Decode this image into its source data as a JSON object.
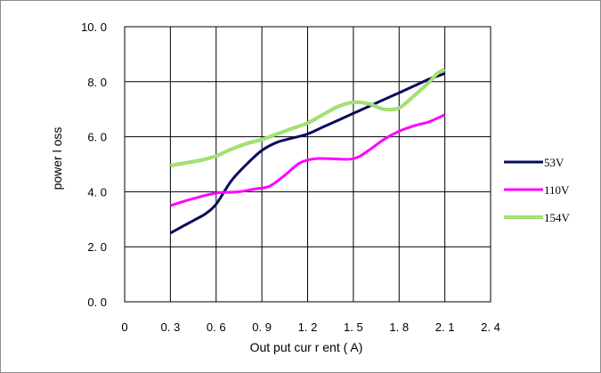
{
  "chart_data": {
    "type": "line",
    "xlabel": "Out put  cur r ent ( A)",
    "ylabel": "power  l oss",
    "xlim": [
      0,
      2.4
    ],
    "ylim": [
      0,
      10
    ],
    "x_ticks": [
      "0",
      "0. 3",
      "0. 6",
      "0. 9",
      "1. 2",
      "1. 5",
      "1. 8",
      "2. 1",
      "2. 4"
    ],
    "y_ticks": [
      "0. 0",
      "2. 0",
      "4. 0",
      "6. 0",
      "8. 0",
      "10. 0"
    ],
    "grid": true,
    "legend_position": "right",
    "series": [
      {
        "name": "53V",
        "color": "#0a0a5e",
        "x": [
          0.3,
          0.45,
          0.53,
          0.6,
          0.7,
          0.8,
          0.9,
          1.0,
          1.1,
          1.2,
          1.3,
          1.4,
          1.5,
          1.6,
          1.7,
          1.8,
          1.9,
          2.0,
          2.1
        ],
        "y": [
          2.5,
          2.95,
          3.2,
          3.55,
          4.4,
          5.0,
          5.5,
          5.8,
          5.95,
          6.1,
          6.35,
          6.6,
          6.85,
          7.1,
          7.35,
          7.6,
          7.85,
          8.1,
          8.3
        ]
      },
      {
        "name": "110V",
        "color": "#ff00ff",
        "x": [
          0.3,
          0.45,
          0.6,
          0.75,
          0.85,
          0.95,
          1.05,
          1.15,
          1.25,
          1.35,
          1.5,
          1.6,
          1.7,
          1.8,
          1.9,
          2.0,
          2.1
        ],
        "y": [
          3.5,
          3.75,
          3.95,
          4.0,
          4.1,
          4.2,
          4.6,
          5.05,
          5.2,
          5.2,
          5.2,
          5.5,
          5.9,
          6.2,
          6.4,
          6.55,
          6.8
        ]
      },
      {
        "name": "154V",
        "color": "#99dd66",
        "x": [
          0.3,
          0.4,
          0.5,
          0.6,
          0.7,
          0.8,
          0.9,
          1.0,
          1.1,
          1.2,
          1.3,
          1.4,
          1.5,
          1.6,
          1.7,
          1.8,
          1.9,
          2.0,
          2.05,
          2.1
        ],
        "y": [
          4.95,
          5.05,
          5.15,
          5.3,
          5.55,
          5.75,
          5.9,
          6.1,
          6.3,
          6.5,
          6.8,
          7.1,
          7.25,
          7.2,
          7.0,
          7.05,
          7.5,
          8.0,
          8.3,
          8.45
        ]
      }
    ]
  }
}
